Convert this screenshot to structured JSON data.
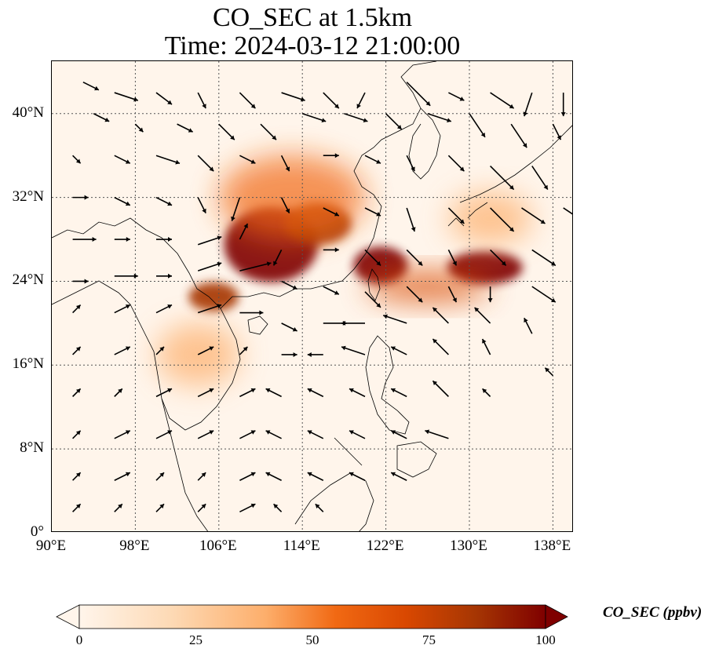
{
  "title": {
    "line1": "CO_SEC at 1.5km",
    "line2": "Time: 2024-03-12 21:00:00"
  },
  "map": {
    "extent": {
      "lon": [
        90,
        140
      ],
      "lat": [
        0,
        45
      ]
    },
    "lat_ticks": [
      {
        "value": 0,
        "label": "0°"
      },
      {
        "value": 8,
        "label": "8°N"
      },
      {
        "value": 16,
        "label": "16°N"
      },
      {
        "value": 24,
        "label": "24°N"
      },
      {
        "value": 32,
        "label": "32°N"
      },
      {
        "value": 40,
        "label": "40°N"
      }
    ],
    "lon_ticks": [
      {
        "value": 90,
        "label": "90°E"
      },
      {
        "value": 98,
        "label": "98°E"
      },
      {
        "value": 106,
        "label": "106°E"
      },
      {
        "value": 114,
        "label": "114°E"
      },
      {
        "value": 122,
        "label": "122°E"
      },
      {
        "value": 130,
        "label": "130°E"
      },
      {
        "value": 138,
        "label": "138°E"
      }
    ],
    "gridlines": true,
    "background_color": "#fff5eb",
    "colormap": [
      "#fff5eb",
      "#fdd9b4",
      "#fdae6b",
      "#f16913",
      "#d94801",
      "#a63603",
      "#7f0000"
    ],
    "high_concentration_regions": [
      {
        "name": "south-china-plume",
        "center": [
          111,
          27.5
        ],
        "radius": [
          4.5,
          3.6
        ],
        "level": 1.0
      },
      {
        "name": "yangtze-plume",
        "center": [
          115.5,
          29.5
        ],
        "radius": [
          3.2,
          2.0
        ],
        "level": 0.85
      },
      {
        "name": "taiwan-strait-plume",
        "center": [
          121.5,
          25.5
        ],
        "radius": [
          2.6,
          1.8
        ],
        "level": 1.0
      },
      {
        "name": "east-pacific-plume",
        "center": [
          131.5,
          25.3
        ],
        "radius": [
          3.6,
          1.6
        ],
        "level": 1.0
      },
      {
        "name": "northern-vietnam-plume",
        "center": [
          105.5,
          22.5
        ],
        "radius": [
          2.4,
          1.4
        ],
        "level": 0.9
      },
      {
        "name": "central-china-cloud",
        "center": [
          113,
          32
        ],
        "radius": [
          7,
          4
        ],
        "level": 0.45
      },
      {
        "name": "outflow-band",
        "center": [
          126,
          23.5
        ],
        "radius": [
          6,
          1.5
        ],
        "level": 0.6
      },
      {
        "name": "indochina-haze",
        "center": [
          104,
          17
        ],
        "radius": [
          4,
          3
        ],
        "level": 0.35
      },
      {
        "name": "japan-haze",
        "center": [
          132,
          30
        ],
        "radius": [
          4,
          2.5
        ],
        "level": 0.3
      }
    ],
    "wind_vectors": [
      [
        93,
        43,
        2,
        -1
      ],
      [
        96,
        42,
        3,
        -1
      ],
      [
        100,
        42,
        2,
        -1.5
      ],
      [
        104,
        42,
        1,
        -2
      ],
      [
        108,
        42,
        2,
        -2
      ],
      [
        112,
        42,
        3,
        -1
      ],
      [
        116,
        42,
        2,
        -2
      ],
      [
        120,
        42,
        -1,
        -2
      ],
      [
        124,
        43,
        3,
        -3
      ],
      [
        128,
        42,
        2,
        -1
      ],
      [
        132,
        42,
        3,
        -2
      ],
      [
        136,
        42,
        -1,
        -3
      ],
      [
        139,
        42,
        0,
        -3
      ],
      [
        94,
        40,
        2,
        -1
      ],
      [
        98,
        39,
        1,
        -1
      ],
      [
        102,
        39,
        2,
        -1
      ],
      [
        106,
        39,
        2,
        -2
      ],
      [
        110,
        39,
        2,
        -2
      ],
      [
        114,
        40,
        3,
        -1
      ],
      [
        118,
        40,
        3,
        -1
      ],
      [
        122,
        40,
        2,
        -2
      ],
      [
        126,
        40,
        3,
        -1
      ],
      [
        130,
        40,
        2,
        -3
      ],
      [
        134,
        39,
        2,
        -3
      ],
      [
        138,
        39,
        1,
        -2
      ],
      [
        92,
        36,
        1,
        -1
      ],
      [
        96,
        36,
        2,
        -1
      ],
      [
        100,
        36,
        3,
        -1
      ],
      [
        104,
        36,
        2,
        -2
      ],
      [
        108,
        36,
        2,
        -1
      ],
      [
        112,
        36,
        1,
        -2
      ],
      [
        116,
        36,
        2,
        0
      ],
      [
        120,
        36,
        2,
        -1
      ],
      [
        124,
        36,
        1,
        -2
      ],
      [
        128,
        36,
        2,
        -2
      ],
      [
        132,
        35,
        3,
        -3
      ],
      [
        136,
        35,
        2,
        -3
      ],
      [
        92,
        32,
        2,
        0
      ],
      [
        96,
        32,
        2,
        -1
      ],
      [
        100,
        32,
        2,
        -1
      ],
      [
        104,
        32,
        1,
        -2
      ],
      [
        108,
        32,
        -1,
        -3
      ],
      [
        112,
        32,
        1,
        -2
      ],
      [
        116,
        31,
        2,
        -1
      ],
      [
        120,
        31,
        2,
        -1
      ],
      [
        124,
        31,
        1,
        -3
      ],
      [
        128,
        31,
        2,
        -2
      ],
      [
        132,
        31,
        3,
        -3
      ],
      [
        135,
        31,
        3,
        -2
      ],
      [
        139,
        31,
        3,
        -2
      ],
      [
        92,
        28,
        3,
        0
      ],
      [
        96,
        28,
        2,
        0
      ],
      [
        100,
        28,
        2,
        0
      ],
      [
        104,
        27.5,
        3,
        1
      ],
      [
        108,
        28,
        1,
        2
      ],
      [
        112,
        27,
        -1,
        -2
      ],
      [
        116,
        27,
        2,
        0
      ],
      [
        120,
        27,
        2,
        -2
      ],
      [
        124,
        27,
        2,
        -2
      ],
      [
        128,
        27,
        1,
        -2
      ],
      [
        132,
        27,
        2,
        -2
      ],
      [
        136,
        27,
        3,
        -2
      ],
      [
        92,
        24,
        2,
        0
      ],
      [
        96,
        24.5,
        3,
        0
      ],
      [
        100,
        24.5,
        2,
        0
      ],
      [
        104,
        25,
        3,
        1
      ],
      [
        108,
        25,
        4,
        1
      ],
      [
        112,
        24,
        2,
        -1
      ],
      [
        116,
        23.5,
        2,
        -1
      ],
      [
        120,
        23,
        2,
        -2
      ],
      [
        124,
        23.5,
        2,
        -2
      ],
      [
        128,
        23.5,
        1,
        -2
      ],
      [
        132,
        23.5,
        0,
        -2
      ],
      [
        136,
        23.5,
        3,
        -2
      ],
      [
        92,
        21,
        1,
        1
      ],
      [
        96,
        21,
        2,
        1
      ],
      [
        100,
        21,
        2,
        1
      ],
      [
        104,
        21,
        3,
        1
      ],
      [
        108,
        21,
        3,
        0
      ],
      [
        112,
        20,
        2,
        -1
      ],
      [
        116,
        20,
        3,
        0
      ],
      [
        120,
        20,
        -3,
        0
      ],
      [
        124,
        20,
        -3,
        1
      ],
      [
        128,
        20,
        -2,
        2
      ],
      [
        132,
        20,
        -2,
        2
      ],
      [
        136,
        19,
        -1,
        2
      ],
      [
        92,
        17,
        1,
        1
      ],
      [
        96,
        17,
        2,
        1
      ],
      [
        100,
        17,
        1,
        1
      ],
      [
        104,
        17,
        2,
        1
      ],
      [
        108,
        17,
        1,
        1
      ],
      [
        112,
        17,
        2,
        0
      ],
      [
        116,
        17,
        -2,
        0
      ],
      [
        120,
        17,
        -3,
        1
      ],
      [
        124,
        17,
        -2,
        1
      ],
      [
        128,
        17,
        -2,
        2
      ],
      [
        132,
        17,
        -1,
        2
      ],
      [
        138,
        15,
        -1,
        1
      ],
      [
        92,
        13,
        1,
        1
      ],
      [
        96,
        13,
        1,
        1
      ],
      [
        100,
        13,
        2,
        1
      ],
      [
        104,
        13,
        2,
        1
      ],
      [
        108,
        13,
        2,
        1
      ],
      [
        112,
        13,
        -2,
        1
      ],
      [
        116,
        13,
        -2,
        1
      ],
      [
        120,
        13,
        -2,
        1
      ],
      [
        124,
        13,
        -2,
        1
      ],
      [
        128,
        13,
        -2,
        2
      ],
      [
        132,
        13,
        -1,
        1
      ],
      [
        92,
        9,
        1,
        1
      ],
      [
        96,
        9,
        2,
        1
      ],
      [
        100,
        9,
        2,
        1
      ],
      [
        104,
        9,
        2,
        1
      ],
      [
        108,
        9,
        2,
        1
      ],
      [
        112,
        9,
        -2,
        1
      ],
      [
        116,
        9,
        -2,
        1
      ],
      [
        120,
        9,
        -2,
        1
      ],
      [
        124,
        9,
        -2,
        1
      ],
      [
        128,
        9,
        -3,
        1
      ],
      [
        92,
        5,
        1,
        1
      ],
      [
        96,
        5,
        2,
        1
      ],
      [
        100,
        5,
        1,
        1
      ],
      [
        104,
        5,
        1,
        1
      ],
      [
        108,
        5,
        2,
        1
      ],
      [
        112,
        5,
        -2,
        1
      ],
      [
        116,
        5,
        -2,
        1
      ],
      [
        120,
        5,
        -2,
        1
      ],
      [
        124,
        5,
        -2,
        1
      ],
      [
        92,
        2,
        1,
        1
      ],
      [
        96,
        2,
        1,
        1
      ],
      [
        100,
        2,
        1,
        1
      ],
      [
        104,
        2,
        1,
        1
      ],
      [
        108,
        2,
        2,
        1
      ],
      [
        112,
        2,
        -1,
        1
      ],
      [
        116,
        2,
        -1,
        1
      ]
    ]
  },
  "colorbar": {
    "min": 0,
    "max": 100,
    "ticks": [
      {
        "value": 0,
        "label": "0"
      },
      {
        "value": 25,
        "label": "25"
      },
      {
        "value": 50,
        "label": "50"
      },
      {
        "value": 75,
        "label": "75"
      },
      {
        "value": 100,
        "label": "100"
      }
    ],
    "label": "CO_SEC (ppbv)",
    "extend": "both"
  }
}
